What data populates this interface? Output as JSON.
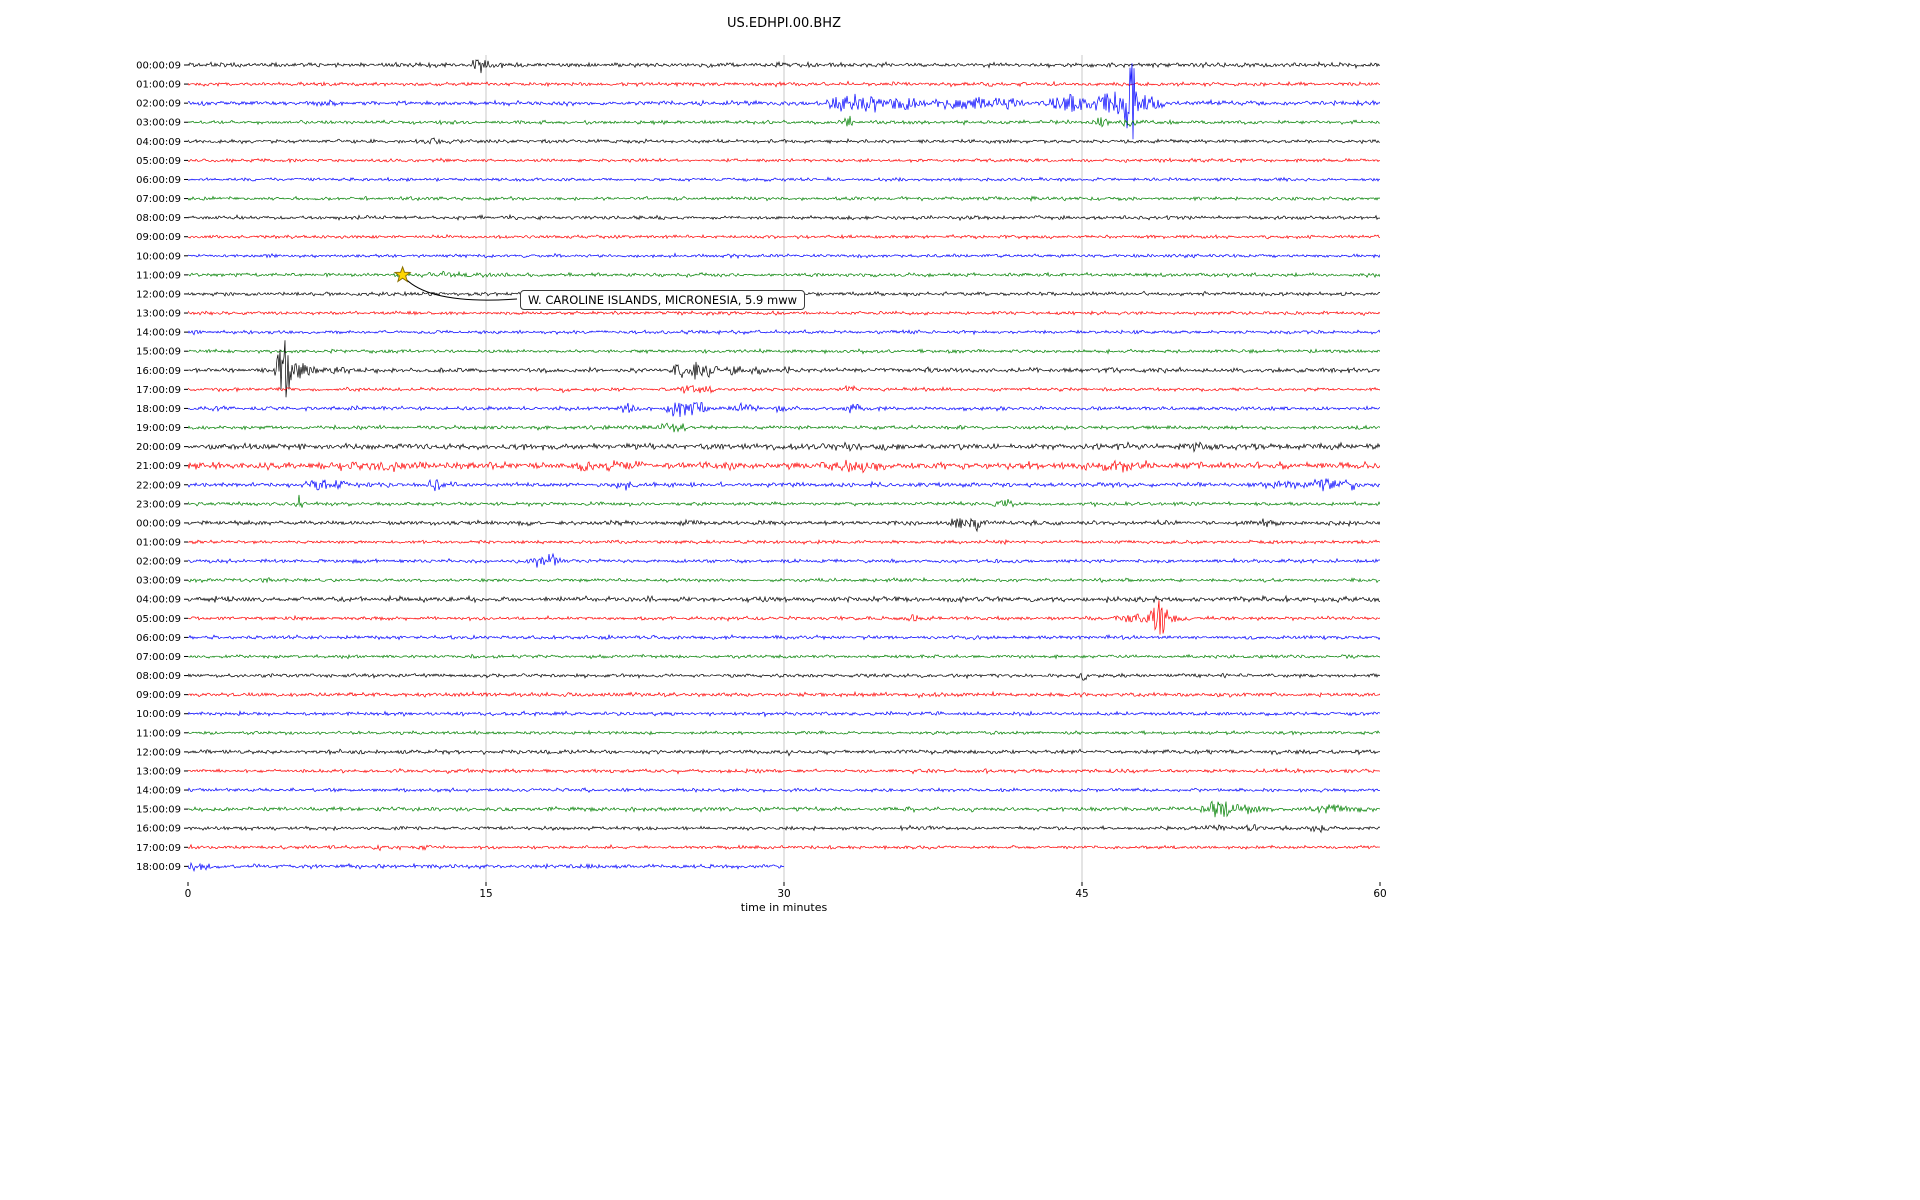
{
  "chart_data": {
    "type": "line",
    "title": "US.EDHPI.00.BHZ",
    "xlabel": "time in minutes",
    "x_range": [
      0,
      60
    ],
    "x_ticks": [
      0,
      15,
      30,
      45,
      60
    ],
    "trace_colors": [
      "#000000",
      "#ff0000",
      "#0000ff",
      "#008000"
    ],
    "annotation": {
      "text": "W. CAROLINE ISLANDS, MICRONESIA, 5.9 mww",
      "row": 11,
      "minute": 10.8,
      "marker": "star",
      "marker_color": "#ffd700"
    },
    "rows": [
      {
        "label": "00:00:09",
        "color": "#000000",
        "noise": 1.2,
        "events": [
          [
            14.8,
            7,
            0.4
          ]
        ]
      },
      {
        "label": "01:00:09",
        "color": "#ff0000",
        "noise": 1.0,
        "events": [
          [
            40.3,
            3,
            0.15
          ]
        ]
      },
      {
        "label": "02:00:09",
        "color": "#0000ff",
        "noise": 1.2,
        "events": [
          [
            6.8,
            4,
            0.4
          ],
          [
            33.0,
            10,
            0.6
          ],
          [
            34.5,
            8,
            0.6
          ],
          [
            36.0,
            6,
            0.8
          ],
          [
            38.0,
            5,
            0.5
          ],
          [
            39.5,
            7,
            0.6
          ],
          [
            41.0,
            5,
            0.8
          ],
          [
            44.5,
            9,
            0.8
          ],
          [
            46.5,
            12,
            0.6
          ],
          [
            47.5,
            40,
            0.25
          ],
          [
            48.3,
            10,
            0.5
          ]
        ]
      },
      {
        "label": "03:00:09",
        "color": "#008000",
        "noise": 1.0,
        "events": [
          [
            33.2,
            8,
            0.15
          ],
          [
            46.0,
            6,
            0.3
          ],
          [
            47.3,
            5,
            0.3
          ]
        ]
      },
      {
        "label": "04:00:09",
        "color": "#000000",
        "noise": 1.0,
        "events": [
          [
            12.4,
            2.5,
            0.6
          ]
        ]
      },
      {
        "label": "05:00:09",
        "color": "#ff0000",
        "noise": 0.9,
        "events": []
      },
      {
        "label": "06:00:09",
        "color": "#0000ff",
        "noise": 0.9,
        "events": []
      },
      {
        "label": "07:00:09",
        "color": "#008000",
        "noise": 0.9,
        "events": []
      },
      {
        "label": "08:00:09",
        "color": "#000000",
        "noise": 1.0,
        "events": []
      },
      {
        "label": "09:00:09",
        "color": "#ff0000",
        "noise": 0.9,
        "events": []
      },
      {
        "label": "10:00:09",
        "color": "#0000ff",
        "noise": 0.9,
        "events": []
      },
      {
        "label": "11:00:09",
        "color": "#008000",
        "noise": 1.0,
        "events": [
          [
            13.0,
            2,
            2.0
          ]
        ]
      },
      {
        "label": "12:00:09",
        "color": "#000000",
        "noise": 1.0,
        "events": []
      },
      {
        "label": "13:00:09",
        "color": "#ff0000",
        "noise": 0.9,
        "events": []
      },
      {
        "label": "14:00:09",
        "color": "#0000ff",
        "noise": 0.9,
        "events": [
          [
            0.4,
            2.5,
            0.2
          ]
        ]
      },
      {
        "label": "15:00:09",
        "color": "#008000",
        "noise": 0.9,
        "events": []
      },
      {
        "label": "16:00:09",
        "color": "#000000",
        "noise": 1.2,
        "events": [
          [
            4.9,
            30,
            0.3
          ],
          [
            5.6,
            8,
            0.5
          ],
          [
            7.5,
            4,
            0.5
          ],
          [
            24.8,
            8,
            0.3
          ],
          [
            25.6,
            10,
            0.3
          ],
          [
            26.3,
            6,
            0.3
          ],
          [
            27.5,
            5,
            0.2
          ],
          [
            28.6,
            4,
            0.2
          ],
          [
            30.2,
            4,
            0.15
          ],
          [
            37.3,
            4,
            0.15
          ],
          [
            46.5,
            3,
            0.3
          ],
          [
            49.0,
            3,
            0.2
          ]
        ]
      },
      {
        "label": "17:00:09",
        "color": "#ff0000",
        "noise": 0.9,
        "events": [
          [
            18.8,
            3,
            0.2
          ],
          [
            25.2,
            5,
            0.4
          ],
          [
            26.0,
            4,
            0.3
          ],
          [
            33.4,
            4,
            0.25
          ]
        ]
      },
      {
        "label": "18:00:09",
        "color": "#0000ff",
        "noise": 1.0,
        "events": [
          [
            1.5,
            3,
            0.3
          ],
          [
            8.5,
            3,
            0.3
          ],
          [
            22.2,
            5,
            0.4
          ],
          [
            24.8,
            9,
            0.5
          ],
          [
            25.6,
            7,
            0.4
          ],
          [
            28.0,
            5,
            0.4
          ],
          [
            29.8,
            4,
            0.3
          ],
          [
            33.6,
            5,
            0.4
          ]
        ]
      },
      {
        "label": "19:00:09",
        "color": "#008000",
        "noise": 1.0,
        "events": [
          [
            23.9,
            7,
            0.3
          ],
          [
            24.6,
            4,
            0.5
          ]
        ]
      },
      {
        "label": "20:00:09",
        "color": "#000000",
        "noise": 1.6,
        "events": [
          [
            4.0,
            3,
            0.4
          ],
          [
            8.6,
            4,
            0.3
          ],
          [
            33.5,
            4,
            0.4
          ],
          [
            50.5,
            3,
            0.8
          ],
          [
            54.0,
            2.5,
            0.5
          ]
        ]
      },
      {
        "label": "21:00:09",
        "color": "#ff0000",
        "noise": 1.8,
        "events": [
          [
            9.5,
            4,
            1.2
          ],
          [
            15.5,
            4,
            0.3
          ],
          [
            20.0,
            3.5,
            0.6
          ],
          [
            21.5,
            4,
            0.8
          ],
          [
            33.5,
            5,
            1.2
          ],
          [
            46.8,
            4,
            1.2
          ]
        ]
      },
      {
        "label": "22:00:09",
        "color": "#0000ff",
        "noise": 1.2,
        "events": [
          [
            6.5,
            4,
            0.5
          ],
          [
            7.5,
            5,
            0.4
          ],
          [
            12.4,
            6,
            0.3
          ],
          [
            22.2,
            6,
            0.3
          ],
          [
            55.0,
            4,
            0.5
          ],
          [
            56.5,
            5,
            0.4
          ],
          [
            57.3,
            8,
            0.4
          ],
          [
            58.5,
            5,
            0.4
          ]
        ]
      },
      {
        "label": "23:00:09",
        "color": "#008000",
        "noise": 1.0,
        "events": [
          [
            5.6,
            9,
            0.2
          ],
          [
            41.0,
            4,
            0.4
          ]
        ]
      },
      {
        "label": "00:00:09",
        "color": "#000000",
        "noise": 1.2,
        "events": [
          [
            25.2,
            4,
            0.2
          ],
          [
            38.8,
            7,
            0.3
          ],
          [
            39.7,
            9,
            0.25
          ],
          [
            54.2,
            4,
            0.2
          ]
        ]
      },
      {
        "label": "01:00:09",
        "color": "#ff0000",
        "noise": 0.9,
        "events": []
      },
      {
        "label": "02:00:09",
        "color": "#0000ff",
        "noise": 1.0,
        "events": [
          [
            17.6,
            6,
            0.3
          ],
          [
            18.3,
            8,
            0.3
          ]
        ]
      },
      {
        "label": "03:00:09",
        "color": "#008000",
        "noise": 0.9,
        "events": [
          [
            4.0,
            4,
            0.2
          ]
        ]
      },
      {
        "label": "04:00:09",
        "color": "#000000",
        "noise": 1.4,
        "events": []
      },
      {
        "label": "05:00:09",
        "color": "#ff0000",
        "noise": 1.0,
        "events": [
          [
            36.5,
            5,
            0.25
          ],
          [
            47.8,
            5,
            0.6
          ],
          [
            48.9,
            18,
            0.3
          ],
          [
            49.6,
            5,
            0.4
          ]
        ]
      },
      {
        "label": "06:00:09",
        "color": "#0000ff",
        "noise": 1.0,
        "events": []
      },
      {
        "label": "07:00:09",
        "color": "#008000",
        "noise": 0.9,
        "events": []
      },
      {
        "label": "08:00:09",
        "color": "#000000",
        "noise": 1.0,
        "events": [
          [
            45.1,
            5,
            0.2
          ]
        ]
      },
      {
        "label": "09:00:09",
        "color": "#ff0000",
        "noise": 1.1,
        "events": []
      },
      {
        "label": "10:00:09",
        "color": "#0000ff",
        "noise": 1.0,
        "events": []
      },
      {
        "label": "11:00:09",
        "color": "#008000",
        "noise": 0.9,
        "events": []
      },
      {
        "label": "12:00:09",
        "color": "#000000",
        "noise": 1.1,
        "events": [
          [
            30.3,
            2.5,
            0.1
          ]
        ]
      },
      {
        "label": "13:00:09",
        "color": "#ff0000",
        "noise": 1.0,
        "events": []
      },
      {
        "label": "14:00:09",
        "color": "#0000ff",
        "noise": 0.9,
        "events": []
      },
      {
        "label": "15:00:09",
        "color": "#008000",
        "noise": 1.1,
        "events": [
          [
            51.8,
            10,
            0.4
          ],
          [
            52.6,
            6,
            0.5
          ],
          [
            53.5,
            4,
            0.6
          ],
          [
            57.5,
            4,
            0.8
          ],
          [
            59.0,
            4,
            0.6
          ]
        ]
      },
      {
        "label": "16:00:09",
        "color": "#000000",
        "noise": 1.0,
        "events": [
          [
            36.3,
            2.5,
            0.3
          ],
          [
            51.5,
            3,
            0.6
          ],
          [
            53.5,
            3,
            0.4
          ],
          [
            57.0,
            3.5,
            0.4
          ]
        ]
      },
      {
        "label": "17:00:09",
        "color": "#ff0000",
        "noise": 0.9,
        "events": [
          [
            9.6,
            3,
            0.2
          ],
          [
            11.9,
            3.5,
            0.2
          ]
        ]
      },
      {
        "label": "18:00:09",
        "color": "#0000ff",
        "noise": 1.1,
        "end": 30,
        "events": [
          [
            0.5,
            3,
            0.6
          ]
        ]
      }
    ]
  }
}
